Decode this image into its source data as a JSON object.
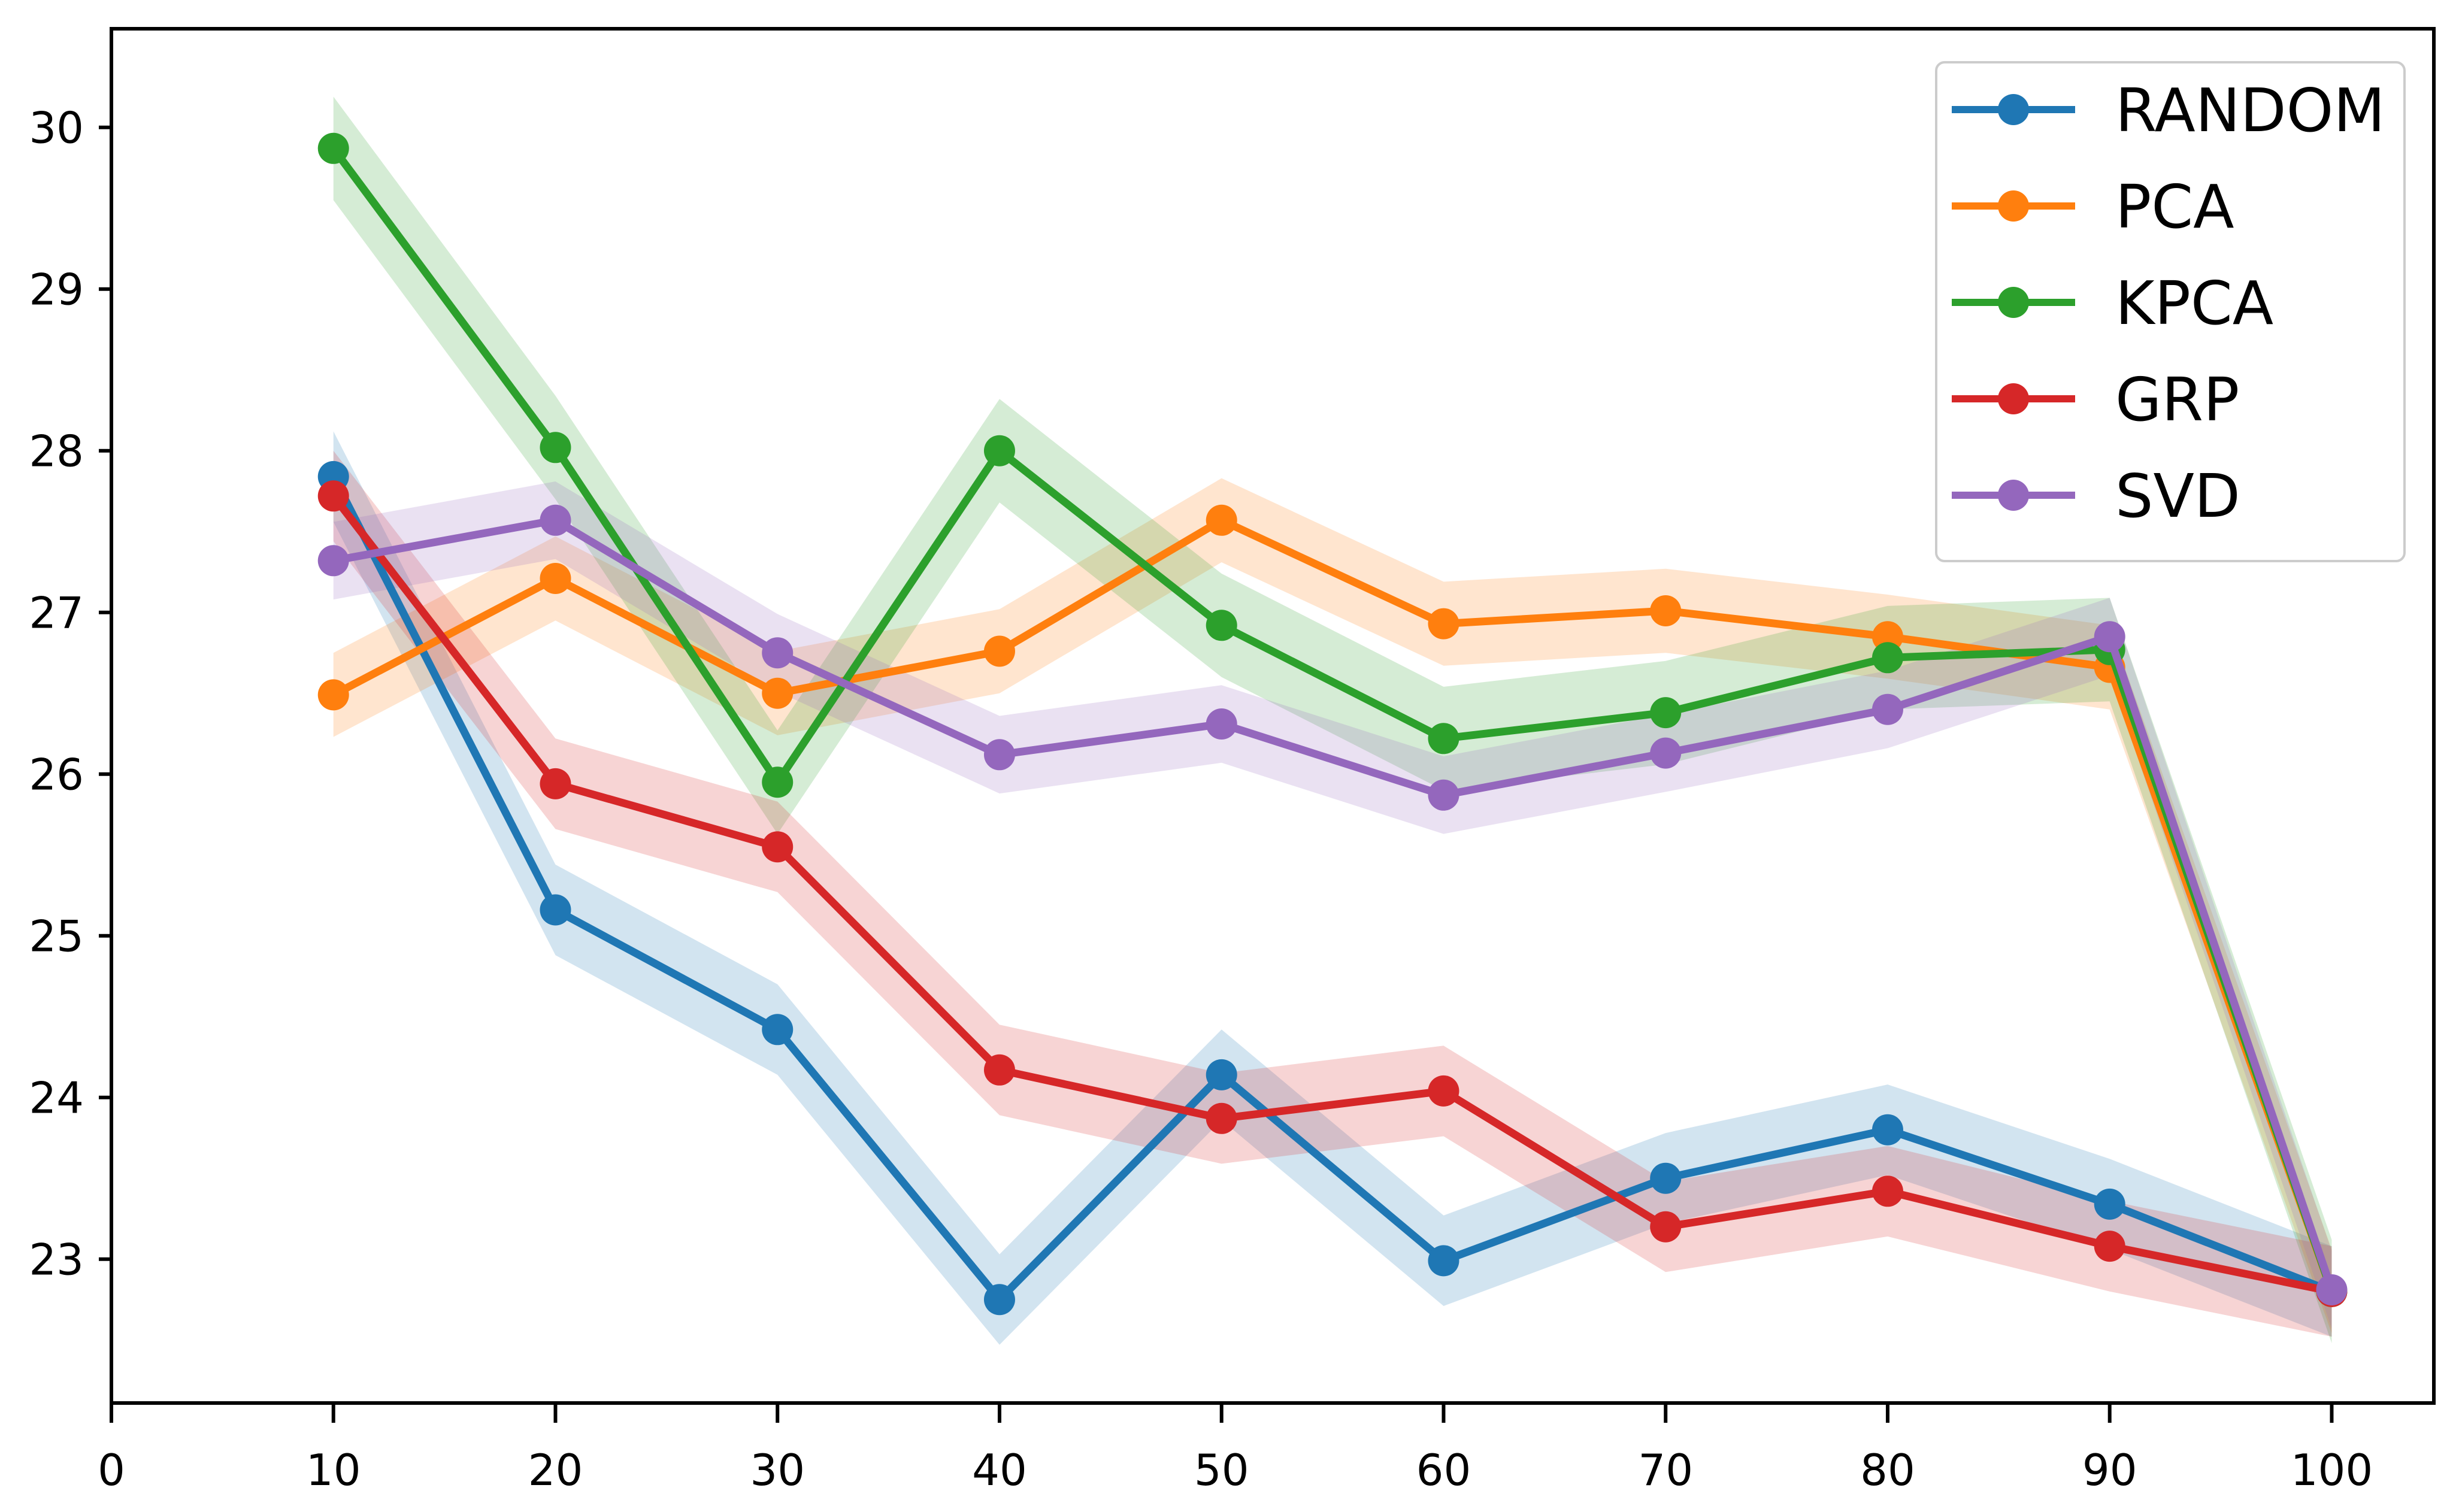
{
  "chart_data": {
    "type": "line",
    "title": "",
    "xlabel": "",
    "ylabel": "",
    "grid": false,
    "x": [
      10,
      20,
      30,
      40,
      50,
      60,
      70,
      80,
      90,
      100
    ],
    "series": [
      {
        "name": "RANDOM",
        "color": "#1f77b4",
        "values": [
          27.84,
          25.16,
          24.42,
          22.75,
          24.14,
          22.99,
          23.5,
          23.8,
          23.34,
          22.8
        ],
        "band_halfwidth": 0.28
      },
      {
        "name": "PCA",
        "color": "#ff7f0e",
        "values": [
          26.49,
          27.21,
          26.5,
          26.76,
          27.57,
          26.93,
          27.01,
          26.85,
          26.66,
          22.8
        ],
        "band_halfwidth": 0.26
      },
      {
        "name": "KPCA",
        "color": "#2ca02c",
        "values": [
          29.87,
          28.02,
          25.95,
          28.0,
          26.92,
          26.22,
          26.38,
          26.72,
          26.77,
          22.8
        ],
        "band_halfwidth": 0.32
      },
      {
        "name": "GRP",
        "color": "#d62728",
        "values": [
          27.72,
          25.94,
          25.55,
          24.17,
          23.87,
          24.04,
          23.2,
          23.42,
          23.08,
          22.8
        ],
        "band_halfwidth": 0.28
      },
      {
        "name": "SVD",
        "color": "#9467bd",
        "values": [
          27.32,
          27.57,
          26.75,
          26.12,
          26.31,
          25.87,
          26.13,
          26.4,
          26.85,
          22.81
        ],
        "band_halfwidth": 0.24
      }
    ],
    "band_alpha": 0.2,
    "xticks": [
      0,
      10,
      20,
      30,
      40,
      50,
      60,
      70,
      80,
      90,
      100
    ],
    "yticks": [
      23,
      24,
      25,
      26,
      27,
      28,
      29,
      30
    ],
    "xlim": [
      0,
      104.6
    ],
    "ylim": [
      22.11,
      30.61
    ],
    "legend": {
      "position": "upper right",
      "entries": [
        "RANDOM",
        "PCA",
        "KPCA",
        "GRP",
        "SVD"
      ]
    },
    "axis_color": "#000000",
    "background_color": "#ffffff",
    "legend_border_color": "#cccccc"
  }
}
